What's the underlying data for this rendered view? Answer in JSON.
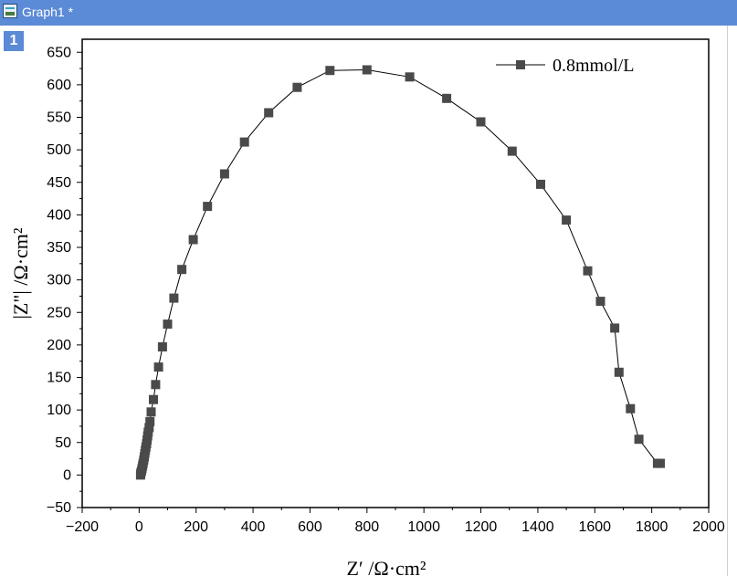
{
  "window": {
    "title": "Graph1 *",
    "layer_label": "1"
  },
  "chart_data": {
    "type": "line",
    "xlabel": "Z′ /Ω·cm²",
    "ylabel": "|Z\"| /Ω·cm²",
    "xlim": [
      -200,
      2000
    ],
    "ylim": [
      -50,
      670
    ],
    "xticks": [
      -200,
      0,
      200,
      400,
      600,
      800,
      1000,
      1200,
      1400,
      1600,
      1800,
      2000
    ],
    "yticks": [
      -50,
      0,
      50,
      100,
      150,
      200,
      250,
      300,
      350,
      400,
      450,
      500,
      550,
      600,
      650
    ],
    "legend_position": "top-right",
    "series": [
      {
        "name": "0.8mmol/L",
        "color": "#4a4a4a",
        "marker": "square",
        "x": [
          5,
          6,
          8,
          10,
          12,
          14,
          16,
          18,
          20,
          22,
          24,
          26,
          28,
          30,
          32,
          35,
          38,
          42,
          50,
          58,
          68,
          82,
          100,
          122,
          150,
          190,
          240,
          300,
          370,
          455,
          555,
          670,
          800,
          950,
          1080,
          1200,
          1310,
          1410,
          1500,
          1575,
          1620,
          1670,
          1685,
          1725,
          1755,
          1820,
          1830
        ],
        "y": [
          0,
          3,
          6,
          10,
          14,
          18,
          23,
          28,
          33,
          38,
          43,
          48,
          54,
          60,
          66,
          73,
          82,
          97,
          116,
          139,
          166,
          197,
          232,
          272,
          316,
          362,
          413,
          463,
          512,
          557,
          596,
          622,
          623,
          612,
          579,
          543,
          498,
          447,
          392,
          314,
          267,
          226,
          158,
          102,
          55,
          18,
          18
        ]
      }
    ]
  }
}
